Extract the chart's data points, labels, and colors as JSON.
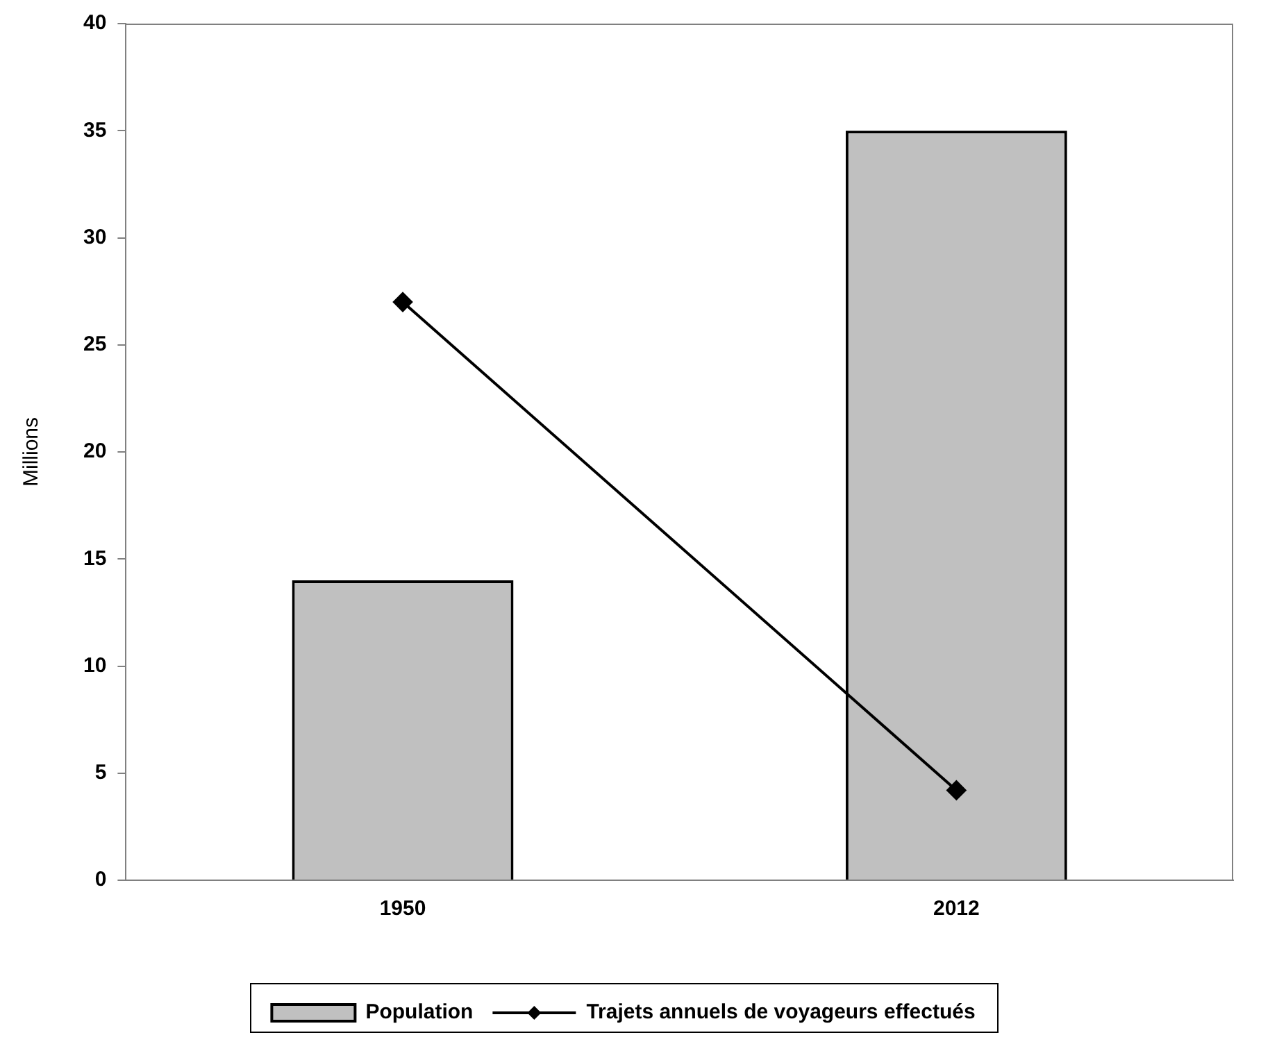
{
  "chart_data": {
    "type": "bar",
    "categories": [
      "1950",
      "2012"
    ],
    "ylabel": "Millions",
    "ylim": [
      0,
      40
    ],
    "yticks": [
      0,
      5,
      10,
      15,
      20,
      25,
      30,
      35,
      40
    ],
    "grid": false,
    "legend": "bottom",
    "marker": "diamond",
    "line_style": "solid",
    "series": [
      {
        "name": "Population",
        "color": "#c0c0c0",
        "values": [
          14,
          35
        ]
      },
      {
        "name": "Trajets annuels de voyageurs effectués",
        "type": "line",
        "color": "#000000",
        "values": [
          27,
          4.2
        ]
      }
    ]
  }
}
